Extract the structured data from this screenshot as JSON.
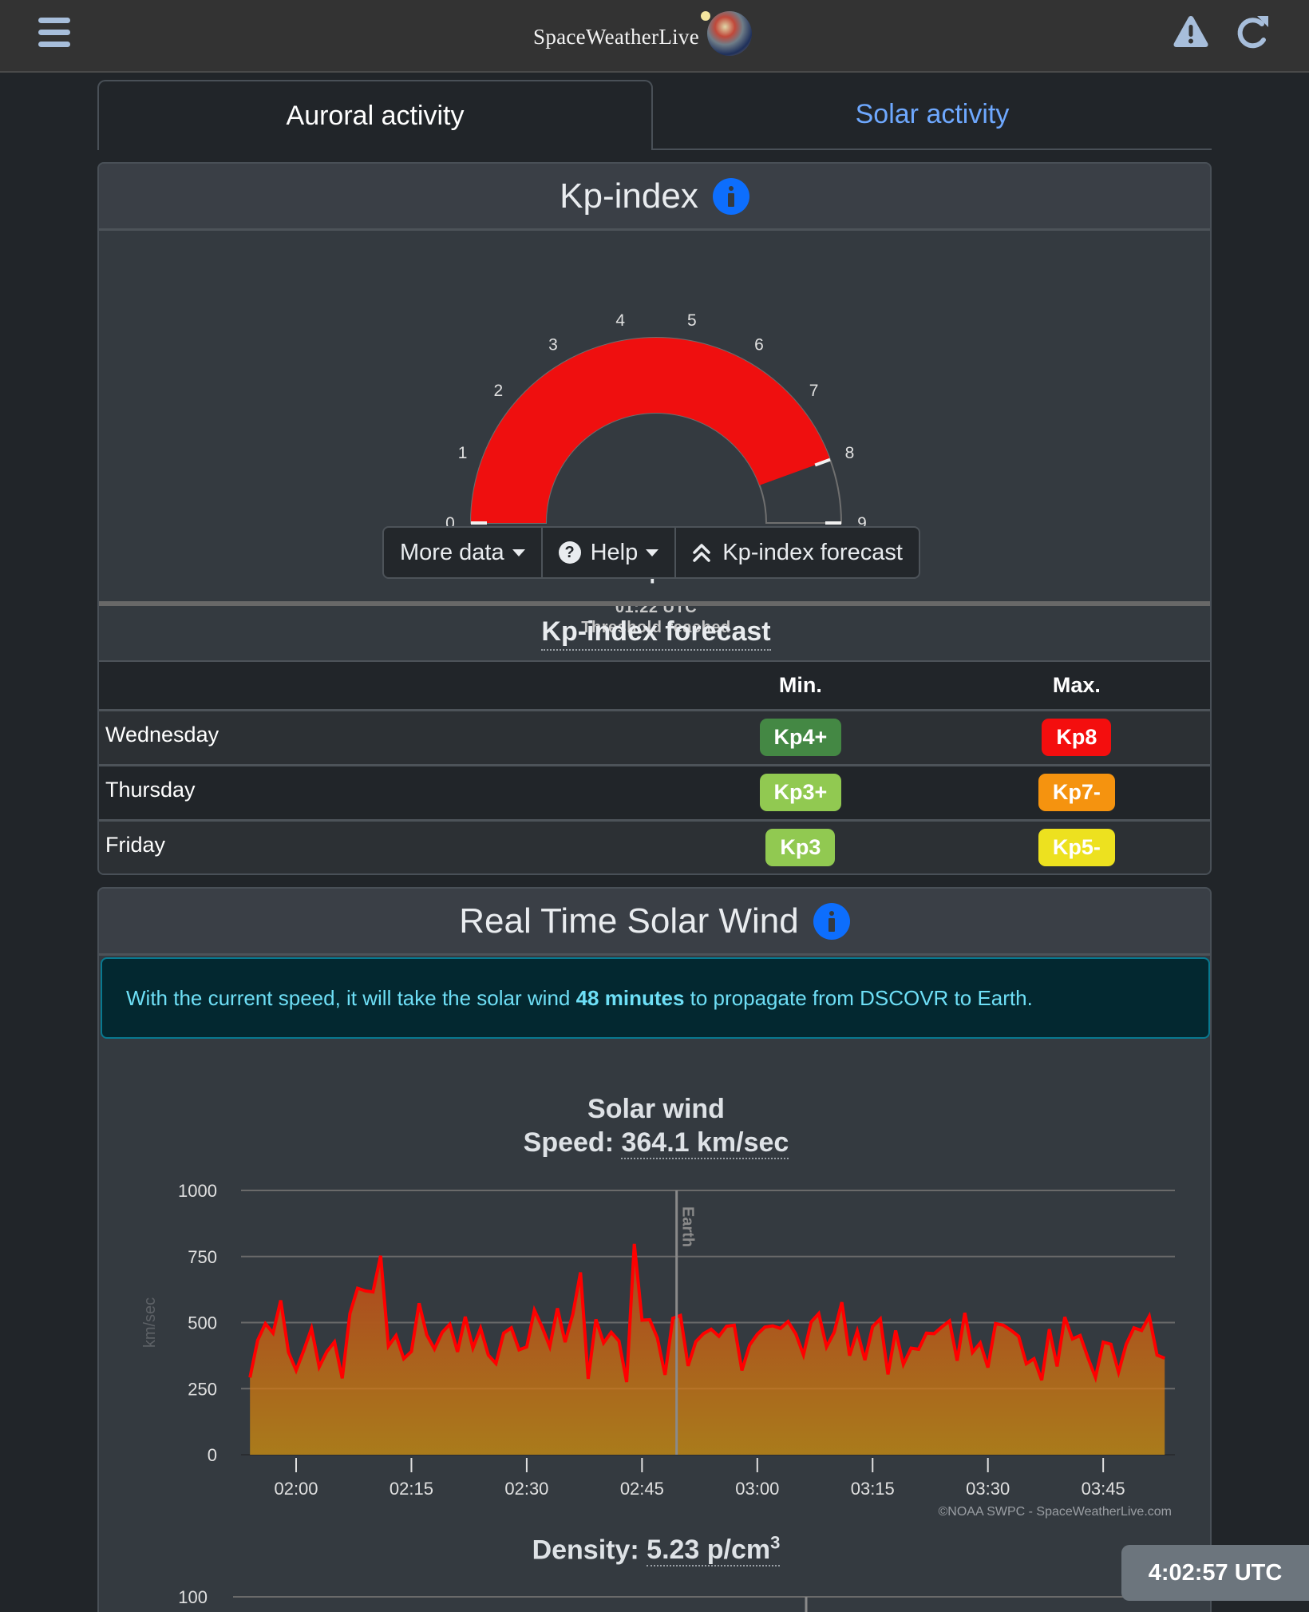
{
  "header": {
    "logo_text": "SpaceWeatherLive",
    "icons": [
      "hamburger-menu-icon",
      "warning-icon",
      "refresh-icon"
    ],
    "icon_color": "#a7bedb"
  },
  "tabs": [
    {
      "label": "Auroral activity",
      "active": true
    },
    {
      "label": "Solar activity",
      "active": false
    }
  ],
  "kp_card": {
    "title": "Kp-index",
    "gauge": {
      "value_label": "Kp8",
      "value": 8,
      "min": 0,
      "max": 9,
      "ticks": [
        "0",
        "1",
        "2",
        "3",
        "4",
        "5",
        "6",
        "7",
        "8",
        "9"
      ],
      "time": "01:22 UTC",
      "status": "Threshold reached",
      "fill_color": "#ef0f0f"
    },
    "buttons": {
      "more_data": "More data",
      "help": "Help",
      "help_glyph": "?",
      "forecast": "Kp-index forecast"
    },
    "forecast": {
      "title": "Kp-index forecast",
      "columns": [
        "",
        "Min.",
        "Max."
      ],
      "rows": [
        {
          "day": "Wednesday",
          "min": "Kp4+",
          "min_color": "#448844",
          "max": "Kp8",
          "max_color": "#f40e0e"
        },
        {
          "day": "Thursday",
          "min": "Kp3+",
          "min_color": "#91c951",
          "max": "Kp7-",
          "max_color": "#f5930f"
        },
        {
          "day": "Friday",
          "min": "Kp3",
          "min_color": "#91c951",
          "max": "Kp5-",
          "max_color": "#ede11f"
        }
      ]
    }
  },
  "solar_wind_card": {
    "title": "Real Time Solar Wind",
    "alert": {
      "prefix": "With the current speed, it will take the solar wind ",
      "highlight": "48 minutes",
      "suffix": " to propagate from DSCOVR to Earth."
    },
    "speed_title": "Solar wind",
    "speed_label": "Speed: ",
    "speed_value": "364.1 km/sec",
    "credit": "©NOAA SWPC - SpaceWeatherLive.com",
    "density_label": "Density: ",
    "density_value": "5.23 p/cm",
    "density_sup": "3",
    "density_y_top": "100"
  },
  "clock": "4:02:57 UTC",
  "chart_data": {
    "type": "area",
    "title": "Solar wind",
    "subtitle": "Speed: 364.1 km/sec",
    "xlabel": "",
    "ylabel": "km/sec",
    "ylim": [
      0,
      1000
    ],
    "yticks": [
      0,
      250,
      500,
      750,
      1000
    ],
    "xtick_labels": [
      "02:00",
      "02:15",
      "02:30",
      "02:45",
      "03:00",
      "03:15",
      "03:30",
      "03:45"
    ],
    "xtick_minutes": [
      120,
      135,
      150,
      165,
      180,
      195,
      210,
      225
    ],
    "x_start_minute": 114,
    "x_step_minutes": 1,
    "grid": true,
    "annotation": {
      "label": "Earth",
      "minute": 169.5
    },
    "line_color": "#ff0000",
    "fill_top_color": "#b0431e",
    "fill_bottom_color": "#ad7d1a",
    "series": [
      {
        "name": "Speed (km/sec)",
        "values": [
          292,
          433,
          496,
          460,
          584,
          388,
          319,
          395,
          478,
          332,
          390,
          427,
          289,
          534,
          630,
          620,
          616,
          753,
          411,
          451,
          363,
          391,
          573,
          453,
          400,
          463,
          494,
          389,
          522,
          404,
          479,
          377,
          345,
          460,
          480,
          397,
          408,
          547,
          483,
          409,
          554,
          426,
          532,
          690,
          287,
          512,
          423,
          463,
          430,
          275,
          798,
          509,
          511,
          441,
          302,
          516,
          527,
          336,
          428,
          458,
          475,
          448,
          486,
          490,
          319,
          415,
          456,
          483,
          488,
          478,
          504,
          457,
          378,
          502,
          534,
          408,
          463,
          577,
          375,
          468,
          358,
          485,
          514,
          304,
          470,
          342,
          403,
          399,
          460,
          458,
          483,
          506,
          356,
          537,
          387,
          423,
          330,
          496,
          490,
          471,
          448,
          344,
          363,
          282,
          475,
          334,
          521,
          438,
          451,
          368,
          292,
          426,
          418,
          312,
          418,
          480,
          470,
          524,
          377,
          365
        ]
      }
    ]
  }
}
